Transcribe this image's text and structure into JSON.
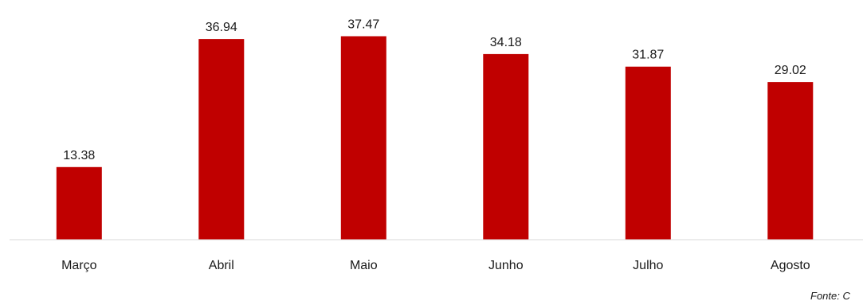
{
  "chart_data": {
    "type": "bar",
    "categories": [
      "Março",
      "Abril",
      "Maio",
      "Junho",
      "Julho",
      "Agosto"
    ],
    "values": [
      13.38,
      36.94,
      37.47,
      34.18,
      31.87,
      29.02
    ],
    "data_labels": [
      "13.38",
      "36.94",
      "37.47",
      "34.18",
      "31.87",
      "29.02"
    ],
    "title": "",
    "xlabel": "",
    "ylabel": "",
    "ylim": [
      0,
      40
    ],
    "grid": false,
    "legend": "none",
    "bar_color": "#c00000"
  },
  "source_note": "Fonte: C"
}
